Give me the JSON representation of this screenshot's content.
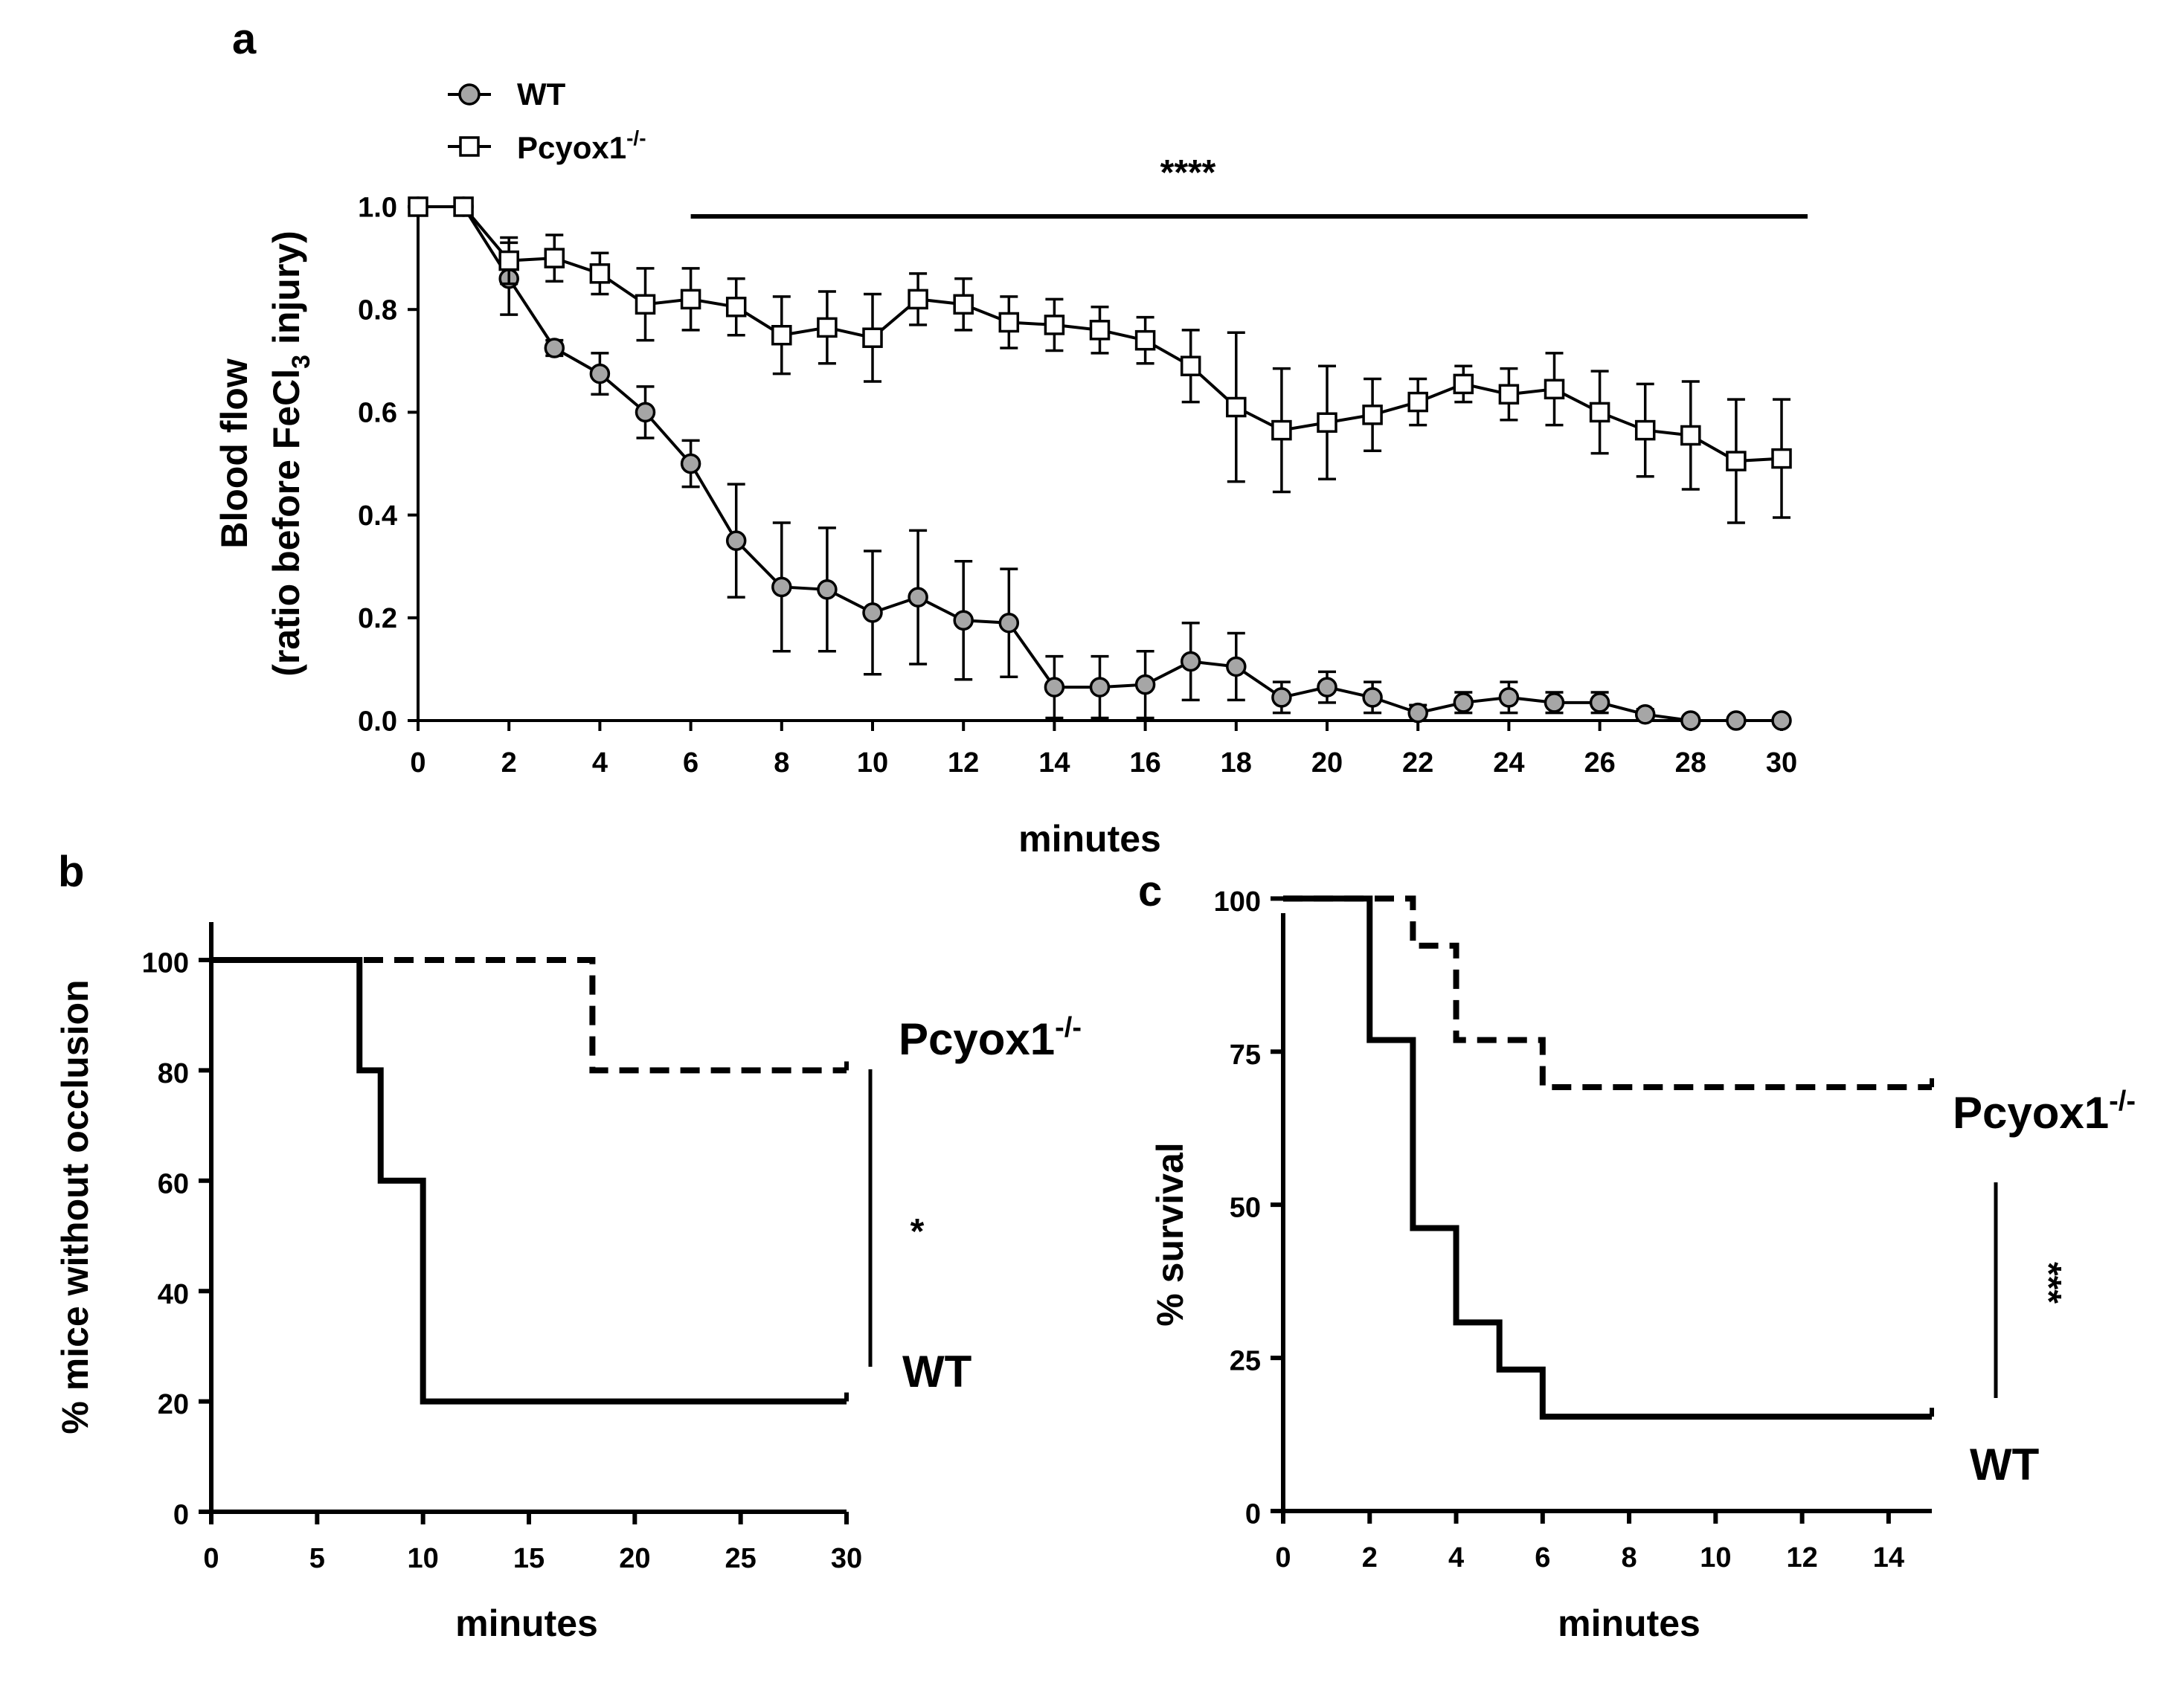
{
  "chart_data": [
    {
      "panel": "a",
      "type": "line",
      "xlabel": "minutes",
      "ylabel_line1": "Blood flow",
      "ylabel_line2_pre": "(ratio before FeCl",
      "ylabel_line2_sub": "3",
      "ylabel_line2_post": " injury)",
      "xlim": [
        0,
        30
      ],
      "ylim": [
        0,
        1.0
      ],
      "xticks": [
        0,
        2,
        4,
        6,
        8,
        10,
        12,
        14,
        16,
        18,
        20,
        22,
        24,
        26,
        28,
        30
      ],
      "yticks": [
        "0.0",
        "0.2",
        "0.4",
        "0.6",
        "0.8",
        "1.0"
      ],
      "legend_position": "top-left",
      "significance": {
        "label": "****",
        "x_from": 6,
        "x_to": 30
      },
      "x": [
        0,
        1,
        2,
        3,
        4,
        5,
        6,
        7,
        8,
        9,
        10,
        11,
        12,
        13,
        14,
        15,
        16,
        17,
        18,
        19,
        20,
        21,
        22,
        23,
        24,
        25,
        26,
        27,
        28,
        29,
        30
      ],
      "series": [
        {
          "name": "WT",
          "marker": "circle-filled",
          "color": "#a6a6a6",
          "values": [
            1.0,
            1.0,
            0.86,
            0.725,
            0.675,
            0.6,
            0.5,
            0.35,
            0.26,
            0.255,
            0.21,
            0.24,
            0.195,
            0.19,
            0.065,
            0.065,
            0.07,
            0.115,
            0.105,
            0.045,
            0.065,
            0.045,
            0.015,
            0.035,
            0.045,
            0.035,
            0.035,
            0.012,
            0.0,
            0.0,
            0.0
          ],
          "errors": [
            0,
            0,
            0.07,
            0.015,
            0.04,
            0.05,
            0.045,
            0.11,
            0.125,
            0.12,
            0.12,
            0.13,
            0.115,
            0.105,
            0.06,
            0.06,
            0.065,
            0.075,
            0.065,
            0.03,
            0.03,
            0.03,
            0.015,
            0.02,
            0.03,
            0.02,
            0.02,
            0.01,
            0,
            0,
            0
          ]
        },
        {
          "name": "Pcyox1",
          "name_sup": "-/-",
          "marker": "square-open",
          "color": "#ffffff",
          "values": [
            1.0,
            1.0,
            0.895,
            0.9,
            0.87,
            0.81,
            0.82,
            0.805,
            0.75,
            0.765,
            0.745,
            0.82,
            0.81,
            0.775,
            0.77,
            0.76,
            0.74,
            0.69,
            0.61,
            0.565,
            0.58,
            0.595,
            0.62,
            0.655,
            0.635,
            0.645,
            0.6,
            0.565,
            0.555,
            0.505,
            0.51
          ],
          "errors": [
            0,
            0,
            0.045,
            0.045,
            0.04,
            0.07,
            0.06,
            0.055,
            0.075,
            0.07,
            0.085,
            0.05,
            0.05,
            0.05,
            0.05,
            0.045,
            0.045,
            0.07,
            0.145,
            0.12,
            0.11,
            0.07,
            0.045,
            0.035,
            0.05,
            0.07,
            0.08,
            0.09,
            0.105,
            0.12,
            0.115
          ]
        }
      ]
    },
    {
      "panel": "b",
      "type": "line",
      "xlabel": "minutes",
      "ylabel": "% mice without occlusion",
      "xlim": [
        0,
        30
      ],
      "ylim": [
        0,
        100
      ],
      "xticks": [
        0,
        5,
        10,
        15,
        20,
        25,
        30
      ],
      "yticks": [
        0,
        20,
        40,
        60,
        80,
        100
      ],
      "significance": {
        "label": "*"
      },
      "series": [
        {
          "name": "Pcyox1",
          "name_sup": "-/-",
          "line_style": "dashed",
          "steps": [
            [
              0,
              100
            ],
            [
              18,
              100
            ],
            [
              18,
              80
            ],
            [
              30,
              80
            ]
          ]
        },
        {
          "name": "WT",
          "line_style": "solid",
          "steps": [
            [
              0,
              100
            ],
            [
              7,
              100
            ],
            [
              7,
              80
            ],
            [
              8,
              80
            ],
            [
              8,
              60
            ],
            [
              10,
              60
            ],
            [
              10,
              20
            ],
            [
              30,
              20
            ]
          ]
        }
      ]
    },
    {
      "panel": "c",
      "type": "line",
      "xlabel": "minutes",
      "ylabel": "% survival",
      "xlim": [
        0,
        15
      ],
      "ylim": [
        0,
        110
      ],
      "xticks": [
        0,
        2,
        4,
        6,
        8,
        10,
        12,
        14
      ],
      "yticks": [
        0,
        25,
        50,
        75,
        100
      ],
      "significance": {
        "label": "***"
      },
      "series": [
        {
          "name": "Pcyox1",
          "name_sup": "-/-",
          "line_style": "dashed",
          "steps": [
            [
              0,
              100
            ],
            [
              3,
              100
            ],
            [
              3,
              92.3
            ],
            [
              4,
              92.3
            ],
            [
              4,
              76.9
            ],
            [
              6,
              76.9
            ],
            [
              6,
              69.2
            ],
            [
              15,
              69.2
            ]
          ]
        },
        {
          "name": "WT",
          "line_style": "solid",
          "steps": [
            [
              0,
              100
            ],
            [
              2,
              100
            ],
            [
              2,
              76.9
            ],
            [
              3,
              76.9
            ],
            [
              3,
              46.2
            ],
            [
              4,
              46.2
            ],
            [
              4,
              30.8
            ],
            [
              5,
              30.8
            ],
            [
              5,
              23.1
            ],
            [
              6,
              23.1
            ],
            [
              6,
              15.4
            ],
            [
              15,
              15.4
            ]
          ]
        }
      ]
    }
  ]
}
